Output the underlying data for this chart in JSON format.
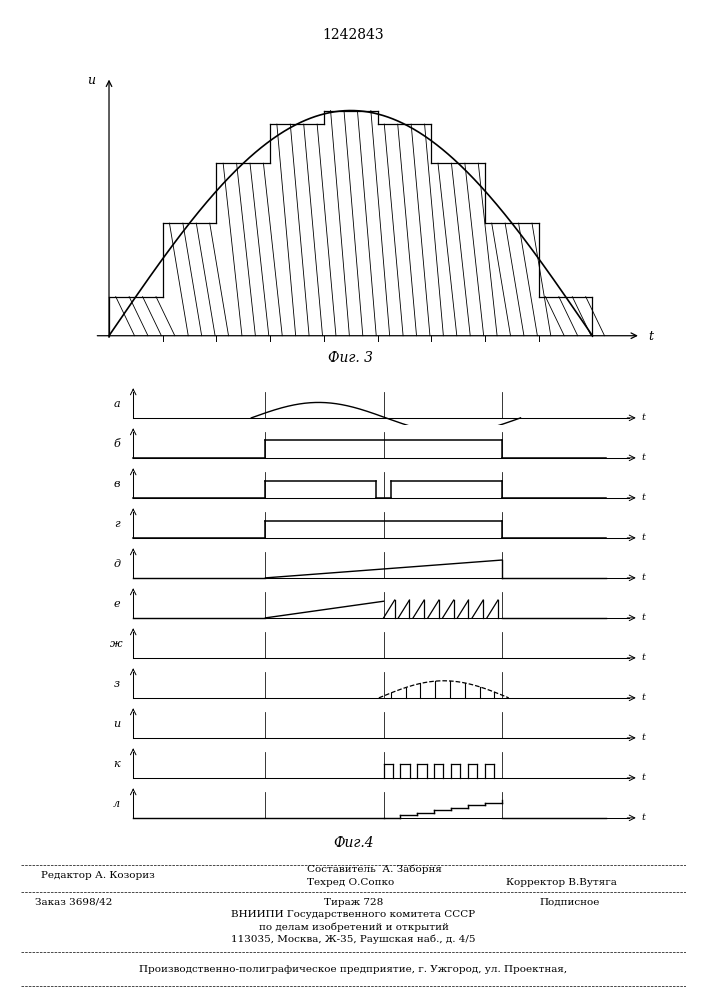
{
  "title": "1242843",
  "fig3_label": "Фиг. 3",
  "fig4_label": "Фиг.4",
  "row_labels": [
    "а",
    "б",
    "в",
    "г",
    "д",
    "е",
    "ж",
    "з",
    "и",
    "к",
    "л"
  ],
  "footer": {
    "editor": "Редактор А. Козориз",
    "compiler": "Составитель  А. Заборня",
    "techred": "Техред О.Сопко",
    "corrector": "Корректор В.Вутяга",
    "order": "Заказ 3698/42",
    "circulation": "Тираж 728",
    "subscription": "Подписное",
    "org1": "ВНИИПИ Государственного комитета СССР",
    "org2": "по делам изобретений и открытий",
    "org3": "113035, Москва, Ж-35, Раушская наб., д. 4/5",
    "printer": "Производственно-полиграфическое предприятие, г. Ужгород, ул. Проектная,"
  }
}
